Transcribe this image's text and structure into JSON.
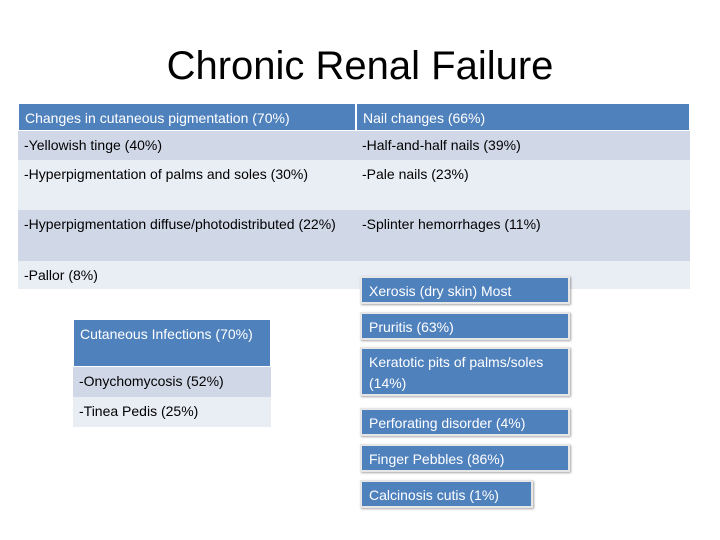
{
  "title": "Chronic Renal Failure",
  "table1": {
    "headers": [
      "Changes in cutaneous pigmentation (70%)",
      "Nail changes (66%)"
    ],
    "rows": [
      [
        "-Yellowish tinge (40%)",
        "-Half-and-half nails (39%)"
      ],
      [
        "-Hyperpigmentation of palms and soles (30%)",
        "-Pale nails (23%)"
      ],
      [
        "-Hyperpigmentation diffuse/photodistributed (22%)",
        "-Splinter hemorrhages (11%)"
      ],
      [
        "-Pallor (8%)",
        ""
      ]
    ]
  },
  "table2": {
    "header": "Cutaneous Infections (70%)",
    "rows": [
      "-Onychomycosis (52%)",
      "-Tinea Pedis (25%)"
    ]
  },
  "boxes": [
    "Xerosis (dry skin) Most",
    "Pruritis (63%)",
    "Keratotic pits of palms/soles (14%)",
    "Perforating disorder (4%)",
    "Finger Pebbles (86%)",
    "Calcinosis cutis (1%)"
  ],
  "colors": {
    "header": "#4f81bd",
    "row_dark": "#d0d8e8",
    "row_light": "#e9edf4"
  }
}
